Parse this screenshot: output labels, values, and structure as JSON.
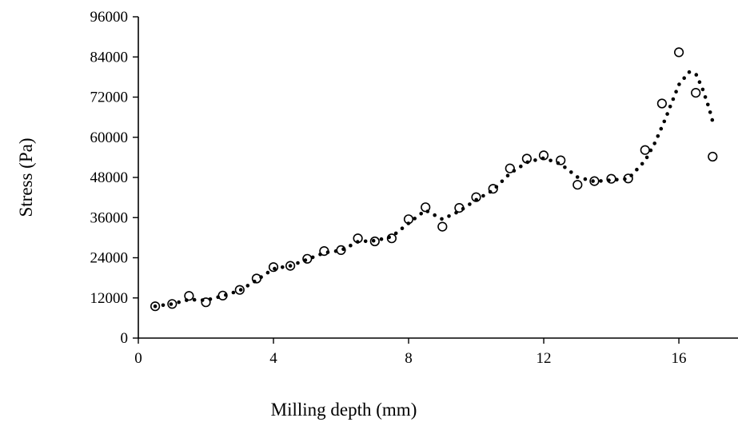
{
  "chart_data": {
    "type": "scatter",
    "title": "",
    "xlabel": "Milling depth (mm)",
    "ylabel": "Stress (Pa)",
    "xlim": [
      0,
      17.75
    ],
    "ylim": [
      0,
      96000
    ],
    "x_ticks": [
      0,
      4,
      8,
      12,
      16
    ],
    "y_ticks": [
      0,
      12000,
      24000,
      36000,
      48000,
      60000,
      72000,
      84000,
      96000
    ],
    "x_tick_labels": [
      "0",
      "4",
      "8",
      "12",
      "16"
    ],
    "y_tick_labels": [
      "0",
      "12000",
      "24000",
      "36000",
      "48000",
      "60000",
      "72000",
      "84000",
      "96000"
    ],
    "grid": false,
    "series": [
      {
        "marker": "open-circle",
        "x": [
          0.5,
          1.0,
          1.5,
          2.0,
          2.5,
          3.0,
          3.5,
          4.0,
          4.5,
          5.0,
          5.5,
          6.0,
          6.5,
          7.0,
          7.5,
          8.0,
          8.5,
          9.0,
          9.5,
          10.0,
          10.5,
          11.0,
          11.5,
          12.0,
          12.5,
          13.0,
          13.5,
          14.0,
          14.5,
          15.0,
          15.5,
          16.0,
          16.5,
          17.0
        ],
        "y": [
          9500,
          10200,
          12600,
          10700,
          12700,
          14400,
          17800,
          21200,
          21600,
          23700,
          26000,
          26300,
          29800,
          28900,
          29800,
          35500,
          39100,
          33300,
          38900,
          42100,
          44600,
          50700,
          53600,
          54600,
          53100,
          45800,
          46900,
          47600,
          47700,
          56200,
          70100,
          85400,
          73300,
          54200
        ]
      },
      {
        "line": "dotted-trend",
        "x": [
          0.5,
          1.0,
          1.5,
          2.0,
          2.5,
          3.0,
          3.5,
          4.0,
          4.5,
          5.0,
          5.5,
          6.0,
          6.5,
          7.0,
          7.5,
          8.0,
          8.5,
          9.0,
          9.5,
          10.0,
          10.5,
          11.0,
          11.5,
          12.0,
          12.5,
          13.0,
          13.5,
          14.0,
          14.5,
          15.0,
          15.3,
          15.6,
          16.0,
          16.3,
          16.5,
          16.7,
          16.9,
          17.0
        ],
        "y": [
          9500,
          10200,
          11500,
          11300,
          12600,
          14200,
          17300,
          20700,
          21600,
          23500,
          25500,
          26200,
          28800,
          29100,
          30300,
          34300,
          38200,
          35500,
          37900,
          41300,
          44200,
          49200,
          52500,
          53800,
          52000,
          48100,
          46800,
          47200,
          47600,
          53000,
          58500,
          65500,
          75700,
          79500,
          79000,
          74500,
          68500,
          64700
        ]
      }
    ]
  }
}
